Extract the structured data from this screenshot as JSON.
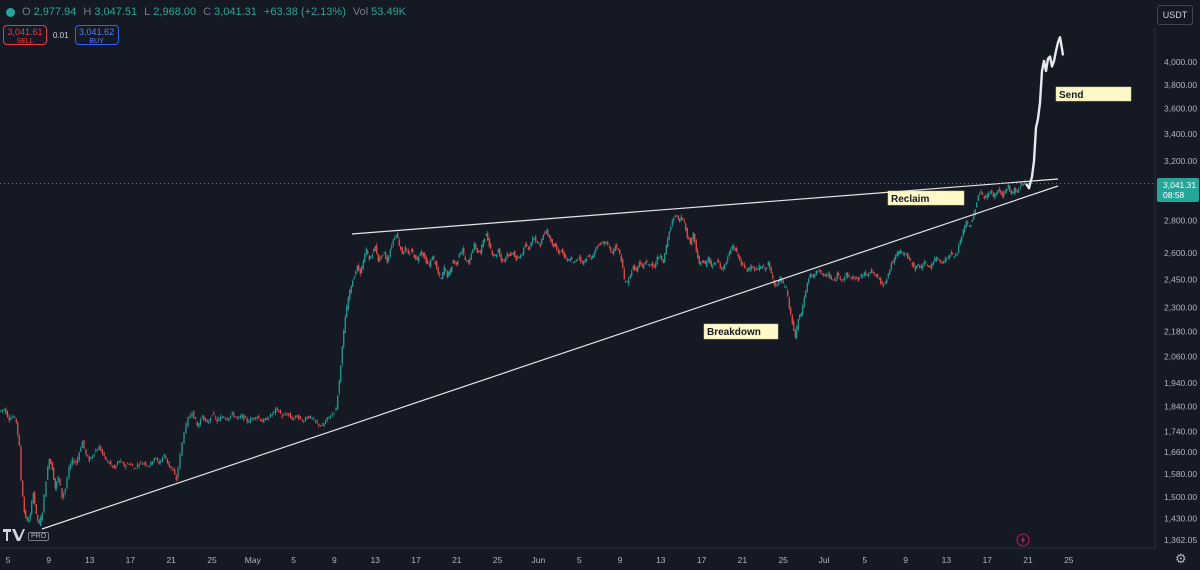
{
  "header": {
    "o_label": "O",
    "o_value": "2,977.94",
    "h_label": "H",
    "h_value": "3,047.51",
    "l_label": "L",
    "l_value": "2,968.00",
    "c_label": "C",
    "c_value": "3,041.31",
    "change": "+63.38 (+2.13%)",
    "vol_label": "Vol",
    "vol_value": "53.49K"
  },
  "trade": {
    "sell_price": "3,041.61",
    "sell_label": "SELL",
    "spread": "0.01",
    "buy_price": "3,041.62",
    "buy_label": "BUY"
  },
  "currency": "USDT",
  "logo_badge": "PRO",
  "icons": {
    "settings": "gear-icon",
    "alert": "bolt-icon",
    "logo": "tradingview-logo"
  },
  "colors": {
    "background": "#151924",
    "up": "#26a69a",
    "down": "#ef5350",
    "projection": "#e8e8f0",
    "note_bg": "#fff9c8",
    "last_price_bg": "#26a69a"
  },
  "chart_data": {
    "type": "candlestick",
    "y_scale": "log",
    "ylim": [
      1320,
      4300
    ],
    "grid": false,
    "y_ticks": [
      {
        "value": 4000,
        "label": "4,000.00"
      },
      {
        "value": 3800,
        "label": "3,800.00"
      },
      {
        "value": 3600,
        "label": "3,600.00"
      },
      {
        "value": 3400,
        "label": "3,400.00"
      },
      {
        "value": 3200,
        "label": "3,200.00"
      },
      {
        "value": 2800,
        "label": "2,800.00"
      },
      {
        "value": 2600,
        "label": "2,600.00"
      },
      {
        "value": 2450,
        "label": "2,450.00"
      },
      {
        "value": 2300,
        "label": "2,300.00"
      },
      {
        "value": 2180,
        "label": "2,180.00"
      },
      {
        "value": 2060,
        "label": "2,060.00"
      },
      {
        "value": 1940,
        "label": "1,940.00"
      },
      {
        "value": 1840,
        "label": "1,840.00"
      },
      {
        "value": 1740,
        "label": "1,740.00"
      },
      {
        "value": 1660,
        "label": "1,660.00"
      },
      {
        "value": 1580,
        "label": "1,580.00"
      },
      {
        "value": 1500,
        "label": "1,500.00"
      },
      {
        "value": 1430,
        "label": "1,430.00"
      },
      {
        "value": 1362,
        "label": "1,362.05"
      }
    ],
    "x_ticks": [
      "5",
      "9",
      "13",
      "17",
      "21",
      "25",
      "May",
      "5",
      "9",
      "13",
      "17",
      "21",
      "25",
      "Jun",
      "5",
      "9",
      "13",
      "17",
      "21",
      "25",
      "Jul",
      "5",
      "9",
      "13",
      "17",
      "21",
      "25"
    ],
    "price_path": [
      [
        0,
        1820
      ],
      [
        5,
        1830
      ],
      [
        10,
        1790
      ],
      [
        14,
        1800
      ],
      [
        17,
        1780
      ],
      [
        20,
        1680
      ],
      [
        22,
        1560
      ],
      [
        25,
        1450
      ],
      [
        28,
        1420
      ],
      [
        31,
        1440
      ],
      [
        34,
        1520
      ],
      [
        37,
        1440
      ],
      [
        40,
        1410
      ],
      [
        43,
        1450
      ],
      [
        47,
        1560
      ],
      [
        50,
        1640
      ],
      [
        53,
        1600
      ],
      [
        56,
        1530
      ],
      [
        59,
        1570
      ],
      [
        63,
        1500
      ],
      [
        66,
        1530
      ],
      [
        70,
        1600
      ],
      [
        73,
        1630
      ],
      [
        77,
        1620
      ],
      [
        80,
        1660
      ],
      [
        83,
        1700
      ],
      [
        87,
        1650
      ],
      [
        90,
        1630
      ],
      [
        95,
        1660
      ],
      [
        100,
        1680
      ],
      [
        105,
        1640
      ],
      [
        110,
        1620
      ],
      [
        115,
        1600
      ],
      [
        120,
        1630
      ],
      [
        125,
        1610
      ],
      [
        130,
        1620
      ],
      [
        135,
        1600
      ],
      [
        140,
        1620
      ],
      [
        145,
        1620
      ],
      [
        150,
        1610
      ],
      [
        155,
        1640
      ],
      [
        160,
        1620
      ],
      [
        165,
        1650
      ],
      [
        170,
        1610
      ],
      [
        174,
        1590
      ],
      [
        177,
        1560
      ],
      [
        181,
        1650
      ],
      [
        185,
        1740
      ],
      [
        189,
        1790
      ],
      [
        193,
        1820
      ],
      [
        198,
        1760
      ],
      [
        203,
        1800
      ],
      [
        208,
        1770
      ],
      [
        213,
        1810
      ],
      [
        218,
        1780
      ],
      [
        223,
        1800
      ],
      [
        228,
        1790
      ],
      [
        233,
        1810
      ],
      [
        238,
        1790
      ],
      [
        243,
        1800
      ],
      [
        248,
        1780
      ],
      [
        253,
        1790
      ],
      [
        258,
        1800
      ],
      [
        263,
        1780
      ],
      [
        268,
        1790
      ],
      [
        273,
        1810
      ],
      [
        278,
        1830
      ],
      [
        283,
        1800
      ],
      [
        288,
        1810
      ],
      [
        293,
        1790
      ],
      [
        298,
        1800
      ],
      [
        303,
        1780
      ],
      [
        308,
        1800
      ],
      [
        313,
        1790
      ],
      [
        318,
        1770
      ],
      [
        323,
        1760
      ],
      [
        328,
        1790
      ],
      [
        333,
        1810
      ],
      [
        337,
        1830
      ],
      [
        340,
        1950
      ],
      [
        343,
        2100
      ],
      [
        346,
        2250
      ],
      [
        349,
        2350
      ],
      [
        352,
        2420
      ],
      [
        355,
        2470
      ],
      [
        358,
        2520
      ],
      [
        361,
        2490
      ],
      [
        364,
        2550
      ],
      [
        367,
        2620
      ],
      [
        370,
        2560
      ],
      [
        373,
        2600
      ],
      [
        376,
        2640
      ],
      [
        379,
        2560
      ],
      [
        382,
        2580
      ],
      [
        385,
        2600
      ],
      [
        388,
        2550
      ],
      [
        391,
        2620
      ],
      [
        394,
        2680
      ],
      [
        397,
        2720
      ],
      [
        400,
        2650
      ],
      [
        403,
        2600
      ],
      [
        406,
        2630
      ],
      [
        409,
        2590
      ],
      [
        412,
        2620
      ],
      [
        415,
        2580
      ],
      [
        418,
        2560
      ],
      [
        421,
        2610
      ],
      [
        424,
        2590
      ],
      [
        427,
        2550
      ],
      [
        430,
        2530
      ],
      [
        433,
        2580
      ],
      [
        436,
        2540
      ],
      [
        439,
        2480
      ],
      [
        442,
        2450
      ],
      [
        445,
        2520
      ],
      [
        448,
        2470
      ],
      [
        451,
        2500
      ],
      [
        454,
        2560
      ],
      [
        457,
        2530
      ],
      [
        460,
        2600
      ],
      [
        463,
        2620
      ],
      [
        466,
        2560
      ],
      [
        469,
        2540
      ],
      [
        472,
        2600
      ],
      [
        475,
        2650
      ],
      [
        478,
        2610
      ],
      [
        481,
        2600
      ],
      [
        484,
        2680
      ],
      [
        487,
        2710
      ],
      [
        490,
        2650
      ],
      [
        493,
        2600
      ],
      [
        496,
        2580
      ],
      [
        499,
        2620
      ],
      [
        502,
        2560
      ],
      [
        505,
        2560
      ],
      [
        508,
        2600
      ],
      [
        511,
        2580
      ],
      [
        514,
        2610
      ],
      [
        517,
        2560
      ],
      [
        520,
        2580
      ],
      [
        523,
        2600
      ],
      [
        526,
        2650
      ],
      [
        529,
        2620
      ],
      [
        532,
        2670
      ],
      [
        535,
        2700
      ],
      [
        538,
        2660
      ],
      [
        541,
        2650
      ],
      [
        544,
        2710
      ],
      [
        547,
        2740
      ],
      [
        550,
        2690
      ],
      [
        553,
        2660
      ],
      [
        556,
        2640
      ],
      [
        559,
        2600
      ],
      [
        562,
        2620
      ],
      [
        565,
        2580
      ],
      [
        568,
        2550
      ],
      [
        571,
        2570
      ],
      [
        574,
        2540
      ],
      [
        577,
        2560
      ],
      [
        580,
        2580
      ],
      [
        583,
        2540
      ],
      [
        586,
        2560
      ],
      [
        589,
        2590
      ],
      [
        592,
        2560
      ],
      [
        595,
        2610
      ],
      [
        598,
        2640
      ],
      [
        601,
        2660
      ],
      [
        604,
        2650
      ],
      [
        607,
        2670
      ],
      [
        610,
        2630
      ],
      [
        613,
        2600
      ],
      [
        616,
        2640
      ],
      [
        619,
        2620
      ],
      [
        622,
        2560
      ],
      [
        625,
        2450
      ],
      [
        628,
        2430
      ],
      [
        631,
        2480
      ],
      [
        634,
        2520
      ],
      [
        637,
        2500
      ],
      [
        640,
        2540
      ],
      [
        643,
        2520
      ],
      [
        646,
        2550
      ],
      [
        649,
        2530
      ],
      [
        652,
        2540
      ],
      [
        655,
        2520
      ],
      [
        658,
        2570
      ],
      [
        661,
        2590
      ],
      [
        664,
        2550
      ],
      [
        667,
        2640
      ],
      [
        670,
        2730
      ],
      [
        673,
        2790
      ],
      [
        676,
        2840
      ],
      [
        679,
        2800
      ],
      [
        682,
        2820
      ],
      [
        685,
        2790
      ],
      [
        688,
        2700
      ],
      [
        691,
        2660
      ],
      [
        694,
        2720
      ],
      [
        697,
        2620
      ],
      [
        700,
        2530
      ],
      [
        703,
        2560
      ],
      [
        706,
        2530
      ],
      [
        709,
        2570
      ],
      [
        712,
        2520
      ],
      [
        715,
        2540
      ],
      [
        718,
        2560
      ],
      [
        721,
        2520
      ],
      [
        724,
        2510
      ],
      [
        727,
        2550
      ],
      [
        730,
        2600
      ],
      [
        733,
        2640
      ],
      [
        736,
        2620
      ],
      [
        739,
        2580
      ],
      [
        742,
        2540
      ],
      [
        745,
        2520
      ],
      [
        748,
        2500
      ],
      [
        751,
        2530
      ],
      [
        754,
        2510
      ],
      [
        757,
        2500
      ],
      [
        760,
        2520
      ],
      [
        763,
        2520
      ],
      [
        766,
        2510
      ],
      [
        769,
        2540
      ],
      [
        772,
        2480
      ],
      [
        775,
        2430
      ],
      [
        778,
        2420
      ],
      [
        781,
        2460
      ],
      [
        784,
        2420
      ],
      [
        787,
        2400
      ],
      [
        790,
        2300
      ],
      [
        793,
        2220
      ],
      [
        796,
        2150
      ],
      [
        799,
        2240
      ],
      [
        802,
        2270
      ],
      [
        805,
        2350
      ],
      [
        808,
        2430
      ],
      [
        811,
        2480
      ],
      [
        814,
        2460
      ],
      [
        817,
        2490
      ],
      [
        820,
        2510
      ],
      [
        823,
        2470
      ],
      [
        826,
        2470
      ],
      [
        829,
        2480
      ],
      [
        832,
        2450
      ],
      [
        835,
        2440
      ],
      [
        838,
        2480
      ],
      [
        841,
        2460
      ],
      [
        844,
        2450
      ],
      [
        847,
        2480
      ],
      [
        850,
        2460
      ],
      [
        853,
        2460
      ],
      [
        856,
        2460
      ],
      [
        859,
        2450
      ],
      [
        862,
        2470
      ],
      [
        865,
        2480
      ],
      [
        868,
        2480
      ],
      [
        871,
        2500
      ],
      [
        874,
        2480
      ],
      [
        877,
        2470
      ],
      [
        880,
        2450
      ],
      [
        883,
        2420
      ],
      [
        886,
        2440
      ],
      [
        889,
        2480
      ],
      [
        892,
        2540
      ],
      [
        895,
        2560
      ],
      [
        898,
        2600
      ],
      [
        901,
        2610
      ],
      [
        904,
        2600
      ],
      [
        907,
        2590
      ],
      [
        910,
        2560
      ],
      [
        913,
        2540
      ],
      [
        916,
        2510
      ],
      [
        919,
        2530
      ],
      [
        922,
        2520
      ],
      [
        925,
        2540
      ],
      [
        928,
        2530
      ],
      [
        931,
        2520
      ],
      [
        934,
        2550
      ],
      [
        937,
        2570
      ],
      [
        940,
        2560
      ],
      [
        943,
        2550
      ],
      [
        946,
        2560
      ],
      [
        949,
        2580
      ],
      [
        952,
        2600
      ],
      [
        955,
        2580
      ],
      [
        958,
        2600
      ],
      [
        961,
        2680
      ],
      [
        964,
        2730
      ],
      [
        967,
        2790
      ],
      [
        970,
        2760
      ],
      [
        973,
        2800
      ],
      [
        976,
        2880
      ],
      [
        979,
        2960
      ],
      [
        982,
        2990
      ],
      [
        985,
        2940
      ],
      [
        988,
        2960
      ],
      [
        991,
        2990
      ],
      [
        994,
        2950
      ],
      [
        997,
        2980
      ],
      [
        1000,
        3000
      ],
      [
        1003,
        2960
      ],
      [
        1006,
        2990
      ],
      [
        1009,
        3020
      ],
      [
        1012,
        2970
      ],
      [
        1015,
        3000
      ],
      [
        1018,
        2980
      ],
      [
        1021,
        3030
      ],
      [
        1024,
        3040
      ],
      [
        1026,
        3041
      ]
    ],
    "projection_path": [
      [
        1026,
        3041
      ],
      [
        1029,
        3010
      ],
      [
        1032,
        3090
      ],
      [
        1034,
        3200
      ],
      [
        1036,
        3450
      ],
      [
        1038,
        3520
      ],
      [
        1040,
        3650
      ],
      [
        1042,
        3920
      ],
      [
        1044,
        4010
      ],
      [
        1046,
        3920
      ],
      [
        1048,
        4030
      ],
      [
        1050,
        4050
      ],
      [
        1052,
        3960
      ],
      [
        1054,
        4010
      ],
      [
        1056,
        4100
      ],
      [
        1058,
        4180
      ],
      [
        1060,
        4230
      ],
      [
        1062,
        4120
      ],
      [
        1063,
        4060
      ]
    ],
    "last_price": {
      "value": 3041.31,
      "label": "3,041.31",
      "countdown": "08:58"
    },
    "annotations": [
      {
        "text": "Reclaim"
      },
      {
        "text": "Breakdown"
      },
      {
        "text": "Send"
      }
    ]
  }
}
